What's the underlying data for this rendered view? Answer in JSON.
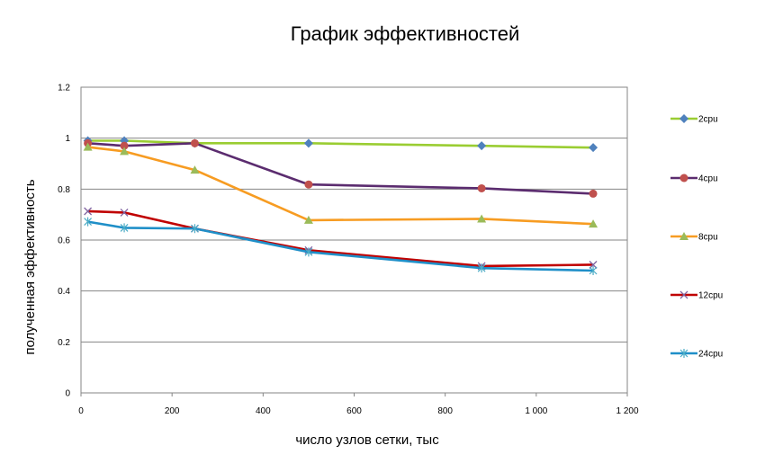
{
  "chart_data": {
    "type": "line",
    "title": "График эффективностей",
    "xlabel": "число узлов сетки, тыс",
    "ylabel": "полученная эффективность",
    "xlim": [
      0,
      1200
    ],
    "ylim": [
      0,
      1.2
    ],
    "x_ticks": [
      "0",
      "200",
      "400",
      "600",
      "800",
      "1 000",
      "1 200"
    ],
    "y_ticks": [
      "0",
      "0.2",
      "0.4",
      "0.6",
      "0.8",
      "1",
      "1.2"
    ],
    "grid": "horizontal",
    "legend_position": "right",
    "x": [
      15,
      95,
      250,
      500,
      880,
      1125
    ],
    "series": [
      {
        "name": "2cpu",
        "color": "#9acd32",
        "marker": "diamond",
        "marker_color": "#4f81bd",
        "values": [
          0.99,
          0.99,
          0.98,
          0.98,
          0.97,
          0.963
        ]
      },
      {
        "name": "4cpu",
        "color": "#5b2c6f",
        "marker": "circle",
        "marker_color": "#c0504d",
        "values": [
          0.98,
          0.97,
          0.98,
          0.818,
          0.803,
          0.782
        ]
      },
      {
        "name": "8cpu",
        "color": "#f79c22",
        "marker": "triangle",
        "marker_color": "#9bbb59",
        "values": [
          0.965,
          0.948,
          0.875,
          0.678,
          0.683,
          0.663
        ]
      },
      {
        "name": "12cpu",
        "color": "#c00000",
        "marker": "x",
        "marker_color": "#8064a2",
        "values": [
          0.713,
          0.708,
          0.645,
          0.56,
          0.498,
          0.503
        ]
      },
      {
        "name": "24cpu",
        "color": "#1f8fc8",
        "marker": "star",
        "marker_color": "#4bacc6",
        "values": [
          0.672,
          0.648,
          0.645,
          0.553,
          0.49,
          0.48
        ]
      }
    ]
  }
}
